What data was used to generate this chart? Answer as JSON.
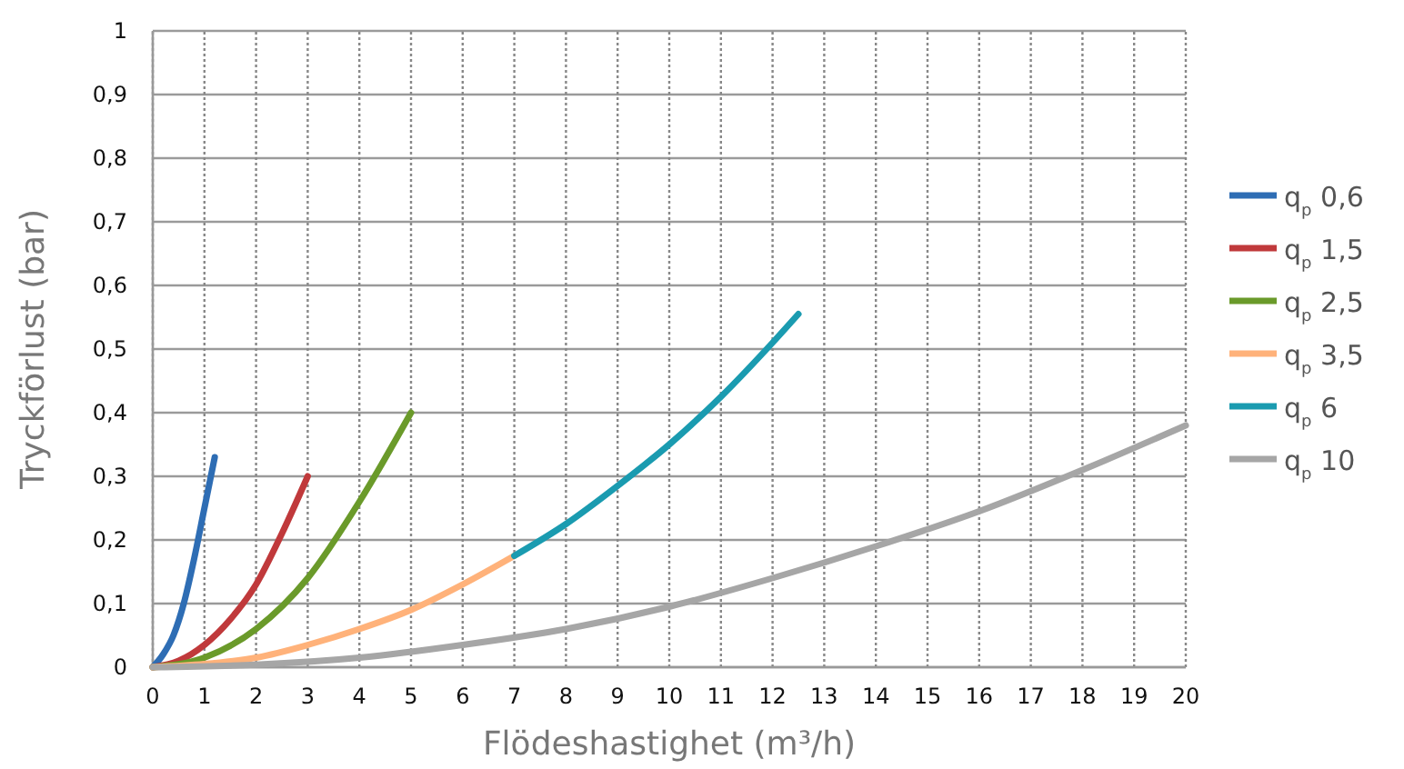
{
  "chart_data": {
    "type": "line",
    "xlabel": "Flödeshastighet (m³/h)",
    "ylabel": "Tryckförlust (bar)",
    "xlim": [
      0,
      20
    ],
    "xticks": [
      0,
      1,
      2,
      3,
      4,
      5,
      6,
      7,
      8,
      9,
      10,
      11,
      12,
      13,
      14,
      15,
      16,
      17,
      18,
      19,
      20
    ],
    "ylim": [
      0,
      1
    ],
    "yticks": [
      0,
      {
        "value": 0.1,
        "label": "0,1"
      },
      {
        "value": 0.2,
        "label": "0,2"
      },
      {
        "value": 0.3,
        "label": "0,3"
      },
      {
        "value": 0.4,
        "label": "0,4"
      },
      {
        "value": 0.5,
        "label": "0,5"
      },
      {
        "value": 0.6,
        "label": "0,6"
      },
      {
        "value": 0.7,
        "label": "0,7"
      },
      {
        "value": 0.8,
        "label": "0,8"
      },
      {
        "value": 0.9,
        "label": "0,9"
      },
      1
    ],
    "grid": true,
    "legend": "right",
    "line_style": "solid",
    "marker": "none",
    "series": [
      {
        "name": "q$_{p}$ 0,6",
        "color": "#2e6db4",
        "x": [
          0,
          0.2,
          0.4,
          0.6,
          0.8,
          1.0,
          1.2
        ],
        "values": [
          0,
          0.02,
          0.05,
          0.1,
          0.17,
          0.25,
          0.33
        ]
      },
      {
        "name": "q$_{p}$ 1,5",
        "color": "#c0393b",
        "x": [
          0,
          0.5,
          1,
          1.5,
          2,
          2.5,
          3
        ],
        "values": [
          0,
          0.01,
          0.035,
          0.075,
          0.13,
          0.21,
          0.3
        ]
      },
      {
        "name": "q$_{p}$ 2,5",
        "color": "#6a9a2a",
        "x": [
          0,
          1,
          2,
          3,
          4,
          5
        ],
        "values": [
          0,
          0.015,
          0.06,
          0.14,
          0.26,
          0.4
        ]
      },
      {
        "name": "q$_{p}$ 3,5",
        "color": "#ffb27a",
        "x": [
          0,
          1,
          2,
          3,
          4,
          5,
          6,
          7
        ],
        "values": [
          0,
          0.005,
          0.015,
          0.035,
          0.06,
          0.09,
          0.13,
          0.175
        ]
      },
      {
        "name": "q$_{p}$ 6",
        "color": "#1a9bb0",
        "x": [
          7,
          8,
          9,
          10,
          11,
          12,
          12.5
        ],
        "values": [
          0.175,
          0.225,
          0.285,
          0.35,
          0.425,
          0.51,
          0.555
        ]
      },
      {
        "name": "q$_{p}$ 10",
        "color": "#a6a6a6",
        "x": [
          0,
          2,
          4,
          6,
          8,
          10,
          12,
          14,
          16,
          18,
          20
        ],
        "values": [
          0,
          0.004,
          0.015,
          0.035,
          0.06,
          0.095,
          0.14,
          0.19,
          0.245,
          0.31,
          0.38
        ]
      }
    ]
  }
}
